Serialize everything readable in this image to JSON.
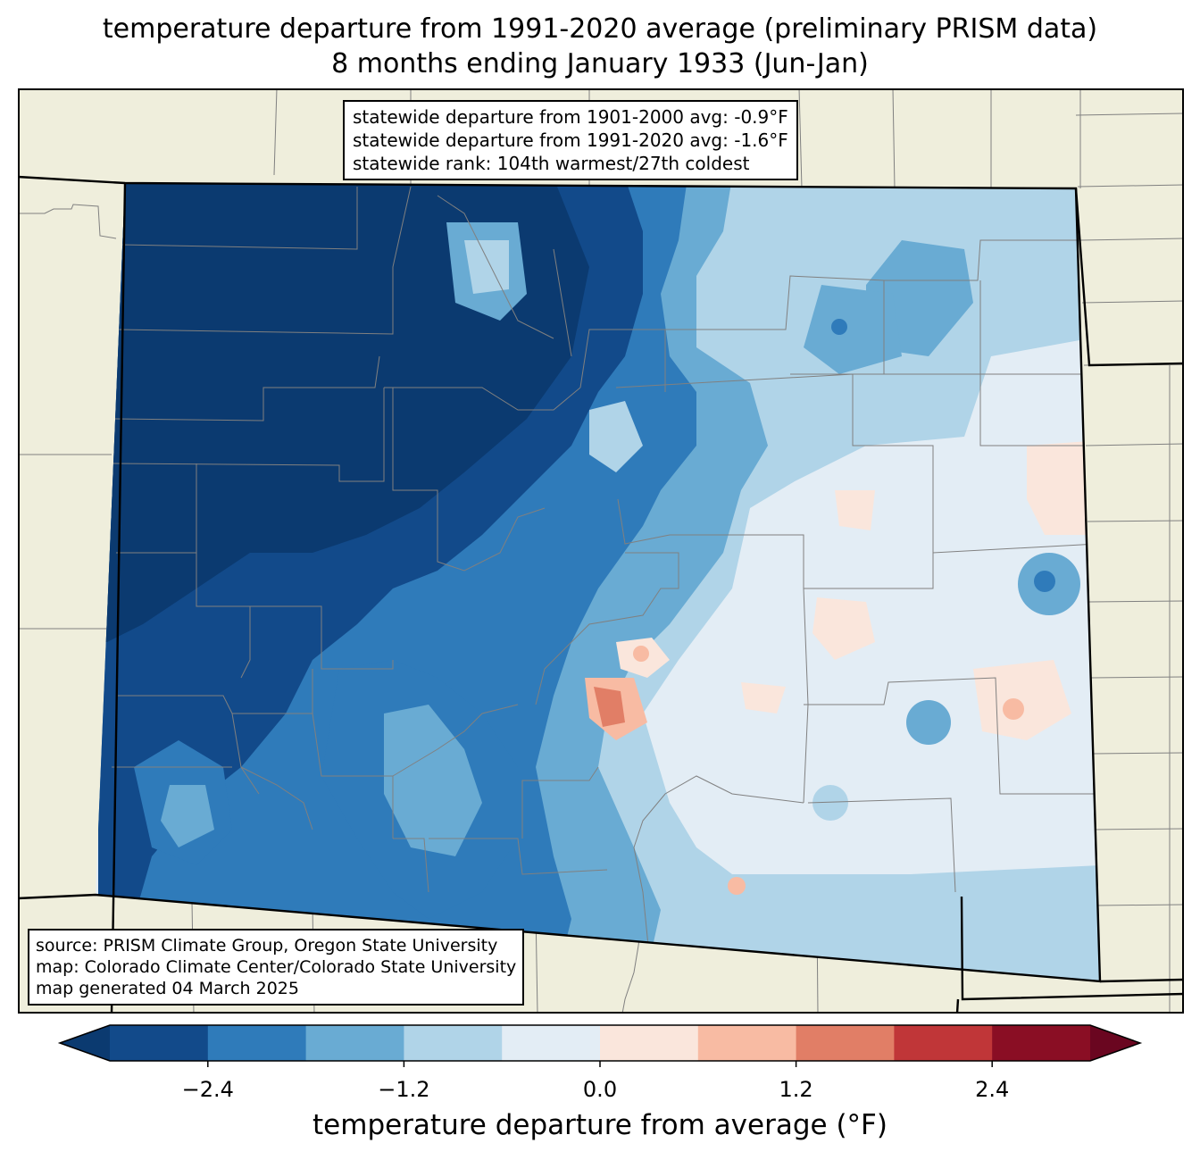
{
  "title": {
    "line1": "temperature departure from 1991-2020 average (preliminary PRISM data)",
    "line2": "8 months ending January 1933 (Jun-Jan)"
  },
  "stats": {
    "line1": "statewide departure from 1901-2000 avg: -0.9°F",
    "line2": "statewide departure from 1991-2020 avg: -1.6°F",
    "line3": "statewide rank: 104th warmest/27th coldest"
  },
  "source": {
    "line1": "source: PRISM Climate Group, Oregon State University",
    "line2": "map: Colorado Climate Center/Colorado State University",
    "line3": "map generated 04 March 2025"
  },
  "colorbar": {
    "label": "temperature departure from average (°F)",
    "ticks": [
      "−2.4",
      "−1.2",
      "0.0",
      "1.2",
      "2.4"
    ],
    "tick_values": [
      -2.4,
      -1.2,
      0.0,
      1.2,
      2.4
    ],
    "range": [
      -3.0,
      3.0
    ],
    "levels": [
      -3.0,
      -2.4,
      -1.8,
      -1.2,
      -0.6,
      0.0,
      0.6,
      1.2,
      1.8,
      2.4,
      3.0
    ],
    "colors": [
      "#0b3a70",
      "#124a8a",
      "#2f7bba",
      "#69abd3",
      "#b0d4e8",
      "#e3edf5",
      "#fae6dc",
      "#f8bba3",
      "#e17e66",
      "#c03638",
      "#8a0e24",
      "#6a0620"
    ]
  },
  "colors": {
    "land": "#efeedc",
    "border": "#000000",
    "county": "#808080"
  }
}
